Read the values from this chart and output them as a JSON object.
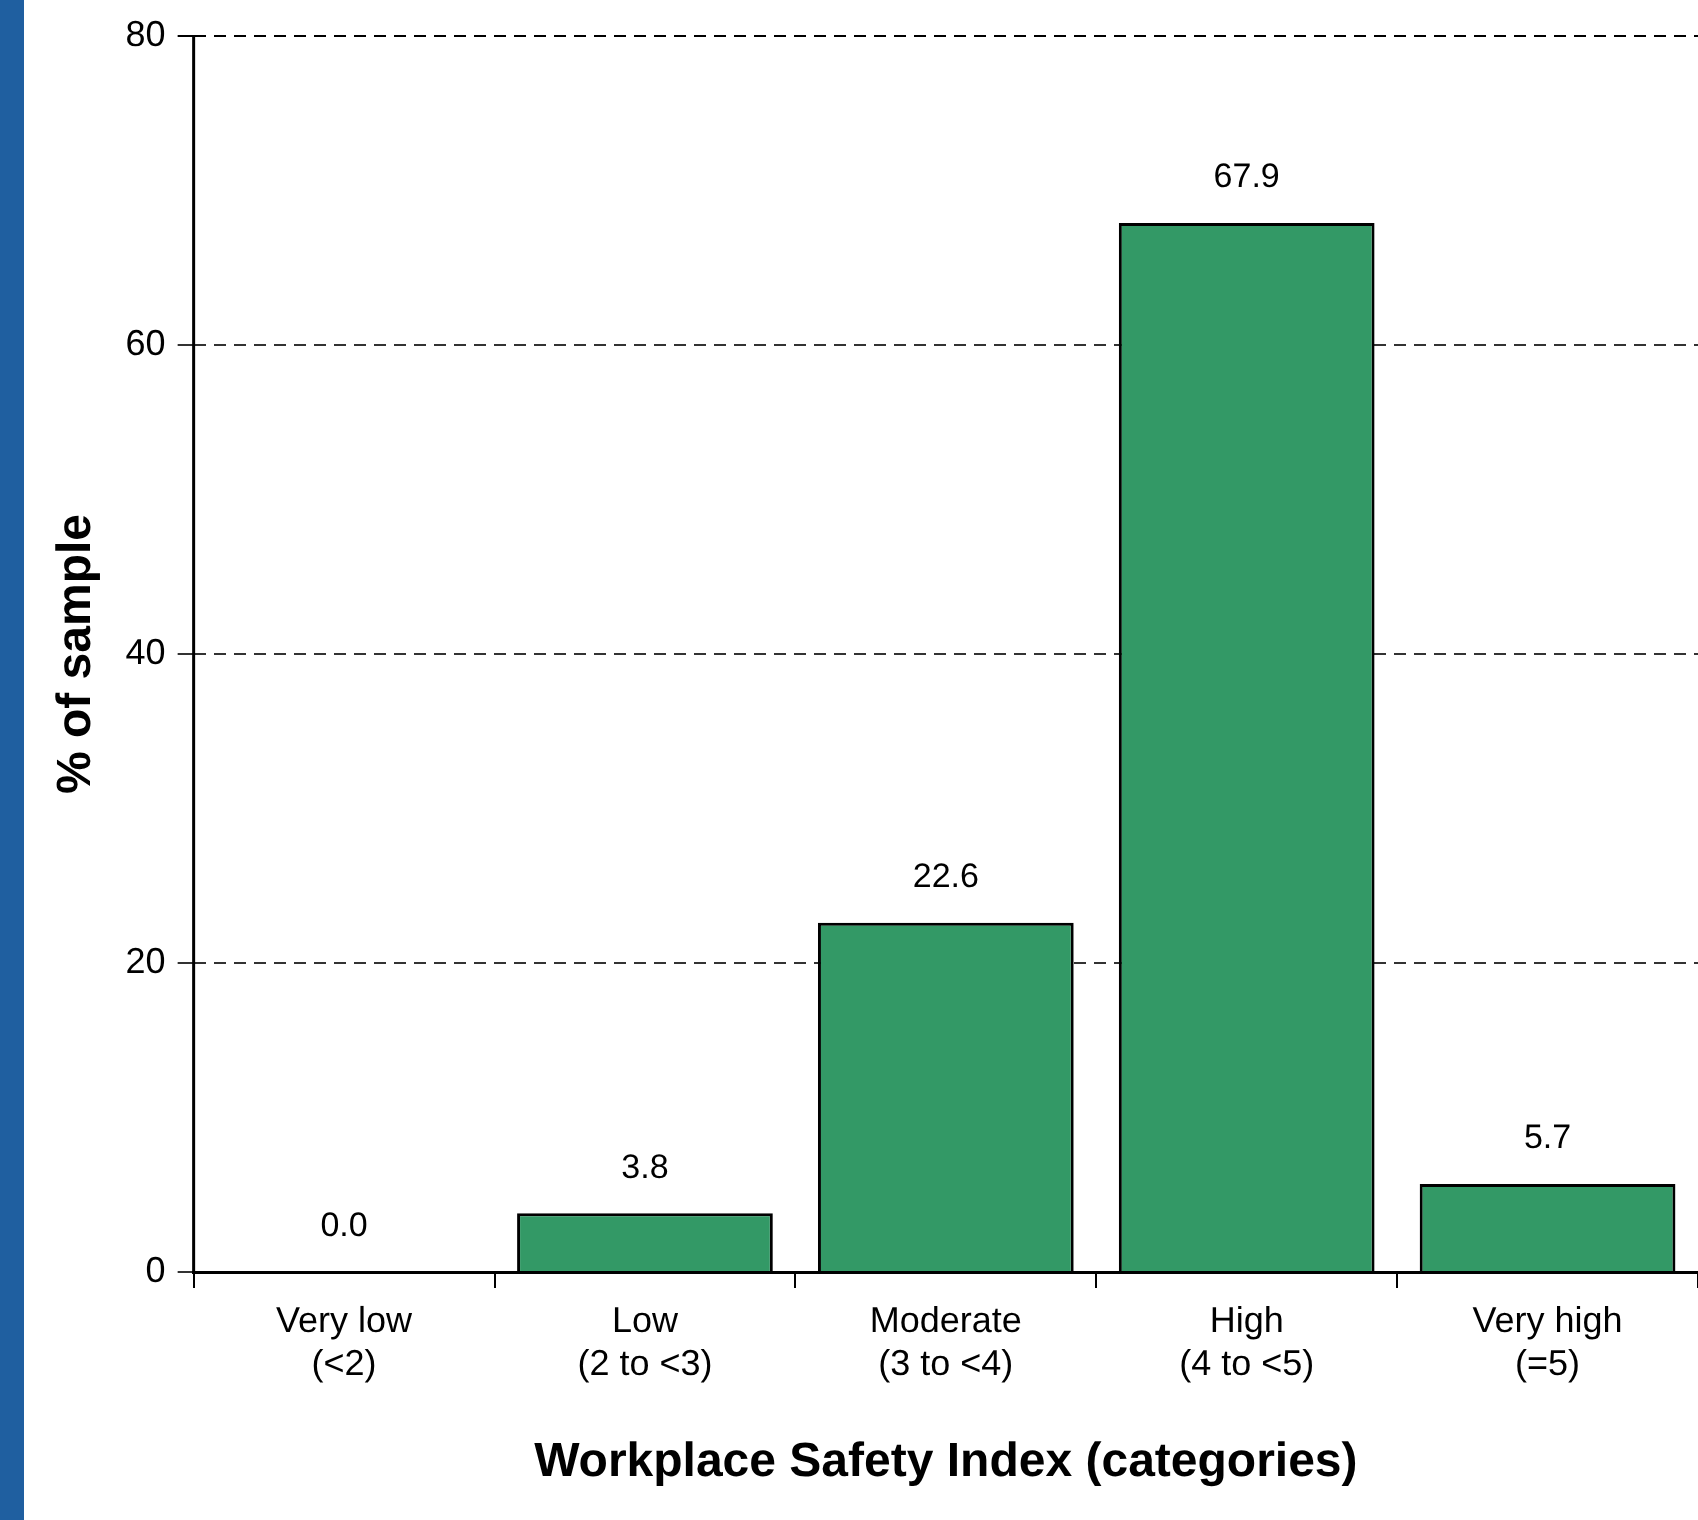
{
  "chart_data": {
    "type": "bar",
    "xlabel": "Workplace Safety Index (categories)",
    "ylabel": "% of sample",
    "categories": [
      "Very low\n(<2)",
      "Low\n(2 to <3)",
      "Moderate\n(3 to <4)",
      "High\n(4 to <5)",
      "Very high\n(=5)"
    ],
    "values": [
      0,
      3.8,
      22.6,
      67.9,
      5.7
    ],
    "value_labels": [
      "0.0",
      "3.8",
      "22.6",
      "67.9",
      "5.7"
    ],
    "color": "#339966",
    "ylim": [
      0,
      80
    ],
    "yticks": [
      0,
      20,
      40,
      60,
      80
    ],
    "grid": "y",
    "legend": false
  }
}
